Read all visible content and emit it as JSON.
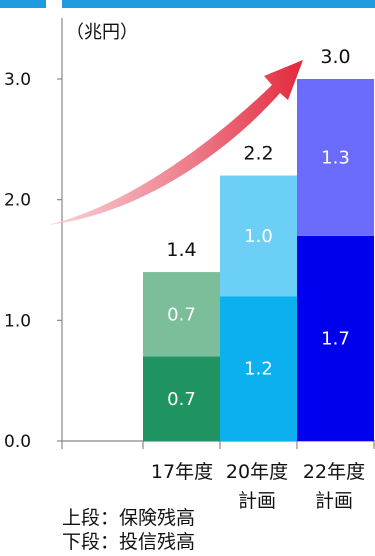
{
  "chart_data": {
    "type": "bar",
    "stacked": true,
    "unit_label": "（兆円）",
    "categories": [
      [
        "17年度"
      ],
      [
        "20年度",
        "計画"
      ],
      [
        "22年度",
        "計画"
      ]
    ],
    "series": [
      {
        "name": "投信残高",
        "values": [
          0.7,
          1.2,
          1.7
        ],
        "colors": [
          "#1f9460",
          "#0cb0ee",
          "#0000ee"
        ]
      },
      {
        "name": "保険残高",
        "values": [
          0.7,
          1.0,
          1.3
        ],
        "colors": [
          "#7cbd9a",
          "#6cd0f6",
          "#6b6bfc"
        ]
      }
    ],
    "totals": [
      "1.4",
      "2.2",
      "3.0"
    ],
    "segment_labels": [
      [
        "0.7",
        "1.2",
        "1.7"
      ],
      [
        "0.7",
        "1.0",
        "1.3"
      ]
    ],
    "y_ticks": [
      "0.0",
      "1.0",
      "2.0",
      "3.0"
    ],
    "ylim": [
      0,
      3.0
    ],
    "grid": false,
    "has_trend_arrow": true
  },
  "legend": {
    "upper": "上段：保険残高",
    "lower": "下段：投信残高"
  },
  "colors": {
    "top_bar": "#1e9be0",
    "arrow_start": "#f7c9d2",
    "arrow_end": "#e3283c"
  }
}
